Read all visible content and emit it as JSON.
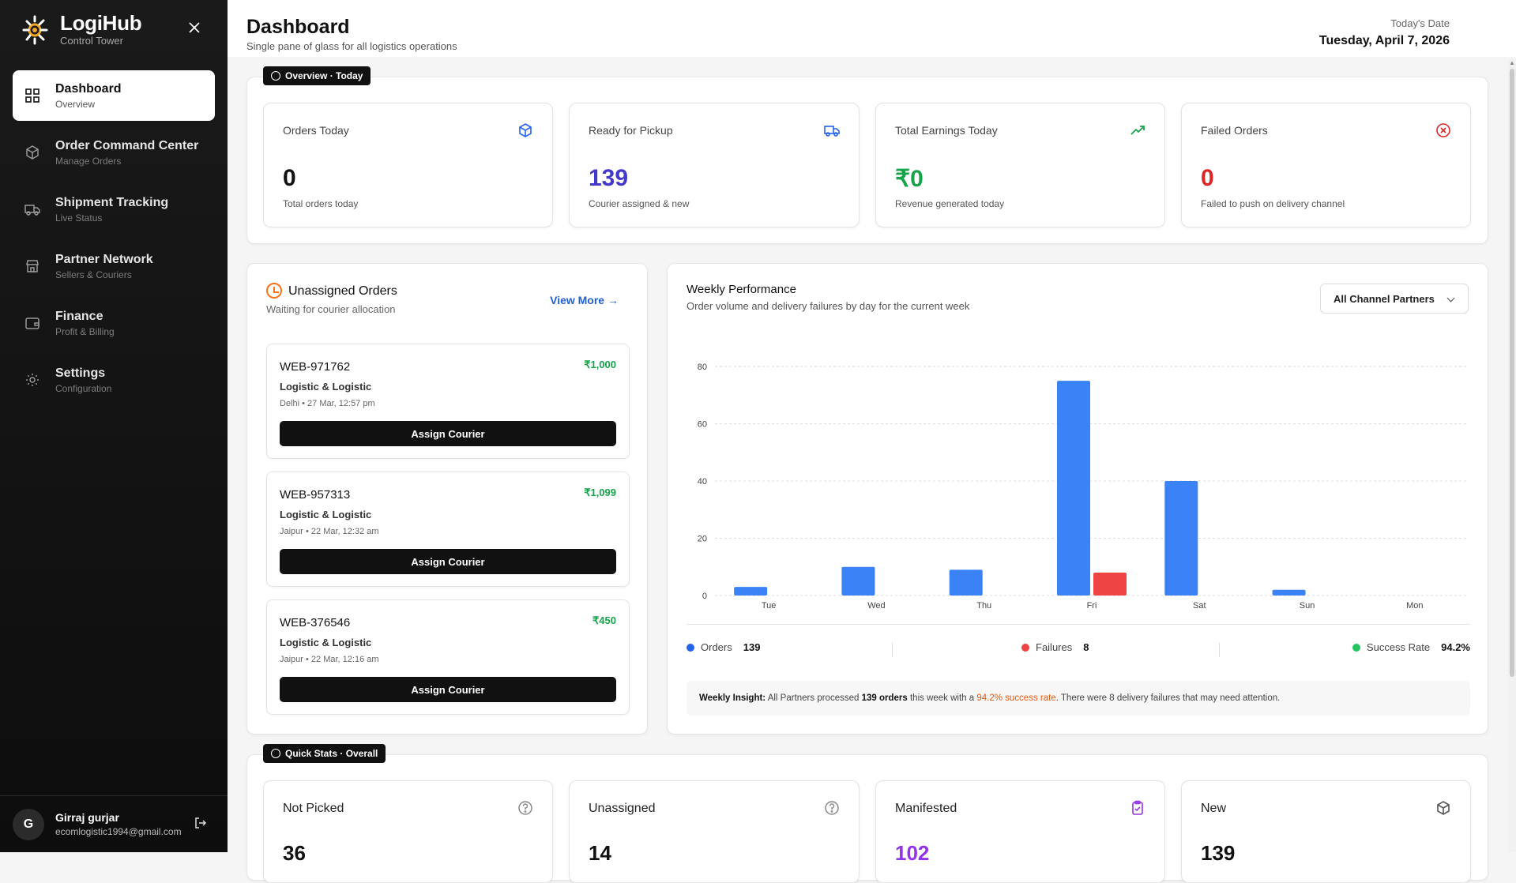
{
  "app": {
    "name": "LogiHub",
    "subtitle": "Control Tower"
  },
  "sidebar": {
    "items": [
      {
        "label": "Dashboard",
        "sub": "Overview",
        "icon": "grid-icon",
        "active": true
      },
      {
        "label": "Order Command Center",
        "sub": "Manage Orders",
        "icon": "package-icon"
      },
      {
        "label": "Shipment Tracking",
        "sub": "Live Status",
        "icon": "truck-icon"
      },
      {
        "label": "Partner Network",
        "sub": "Sellers & Couriers",
        "icon": "store-icon"
      },
      {
        "label": "Finance",
        "sub": "Profit & Billing",
        "icon": "wallet-icon"
      },
      {
        "label": "Settings",
        "sub": "Configuration",
        "icon": "gear-icon"
      }
    ],
    "user": {
      "initial": "G",
      "name": "Girraj gurjar",
      "email": "ecomlogistic1994@gmail.com"
    }
  },
  "header": {
    "title": "Dashboard",
    "subtitle": "Single pane of glass for all logistics operations",
    "date_label": "Today's Date",
    "date_value": "Tuesday, April 7, 2026"
  },
  "overview": {
    "pill": "Overview · Today",
    "cards": [
      {
        "label": "Orders Today",
        "value": "0",
        "sub": "Total orders today",
        "color": "#111111",
        "icon": "cube-icon",
        "icon_color": "#2563eb"
      },
      {
        "label": "Ready for Pickup",
        "value": "139",
        "sub": "Courier assigned & new",
        "color": "#4338ca",
        "icon": "truck-icon",
        "icon_color": "#2563eb"
      },
      {
        "label": "Total Earnings Today",
        "value": "₹0",
        "sub": "Revenue generated today",
        "color": "#16a34a",
        "icon": "trending-up-icon",
        "icon_color": "#16a34a"
      },
      {
        "label": "Failed Orders",
        "value": "0",
        "sub": "Failed to push on delivery channel",
        "color": "#dc2626",
        "icon": "x-circle-icon",
        "icon_color": "#dc2626"
      }
    ]
  },
  "unassigned": {
    "title": "Unassigned Orders",
    "subtitle": "Waiting for courier allocation",
    "view_more": "View More",
    "button_label": "Assign Courier",
    "orders": [
      {
        "id": "WEB-971762",
        "amount": "₹1,000",
        "seller": "Logistic & Logistic",
        "meta": "Delhi • 27 Mar, 12:57 pm"
      },
      {
        "id": "WEB-957313",
        "amount": "₹1,099",
        "seller": "Logistic & Logistic",
        "meta": "Jaipur • 22 Mar, 12:32 am"
      },
      {
        "id": "WEB-376546",
        "amount": "₹450",
        "seller": "Logistic & Logistic",
        "meta": "Jaipur • 22 Mar, 12:16 am"
      }
    ]
  },
  "weekly": {
    "title": "Weekly Performance",
    "subtitle": "Order volume and delivery failures by day for the current week",
    "filter": "All Channel Partners",
    "summary": {
      "orders_label": "Orders",
      "orders_value": "139",
      "failures_label": "Failures",
      "failures_value": "8",
      "success_label": "Success Rate",
      "success_value": "94.2%"
    },
    "insight": {
      "lead": "Weekly Insight:",
      "t1": " All Partners processed ",
      "orders": "139 orders",
      "t2": " this week with a ",
      "rate": "94.2% success rate",
      "t3": ". There were 8 delivery failures that may need attention."
    }
  },
  "chart_data": {
    "type": "bar",
    "categories": [
      "Tue",
      "Wed",
      "Thu",
      "Fri",
      "Sat",
      "Sun",
      "Mon"
    ],
    "series": [
      {
        "name": "Orders",
        "color": "#3b82f6",
        "values": [
          3,
          10,
          9,
          75,
          40,
          2,
          0
        ]
      },
      {
        "name": "Failures",
        "color": "#ef4444",
        "values": [
          0,
          0,
          0,
          8,
          0,
          0,
          0
        ]
      }
    ],
    "yticks": [
      "0",
      "20",
      "40",
      "60",
      "80"
    ],
    "ylim": [
      0,
      80
    ],
    "grid": true
  },
  "quick": {
    "pill": "Quick Stats · Overall",
    "cards": [
      {
        "label": "Not Picked",
        "value": "36",
        "color": "#111111",
        "icon": "help-circle-icon",
        "icon_color": "#888888"
      },
      {
        "label": "Unassigned",
        "value": "14",
        "color": "#111111",
        "icon": "help-circle-icon",
        "icon_color": "#888888"
      },
      {
        "label": "Manifested",
        "value": "102",
        "color": "#9333ea",
        "icon": "clipboard-check-icon",
        "icon_color": "#9333ea"
      },
      {
        "label": "New",
        "value": "139",
        "color": "#111111",
        "icon": "cube-icon",
        "icon_color": "#555555"
      }
    ]
  }
}
